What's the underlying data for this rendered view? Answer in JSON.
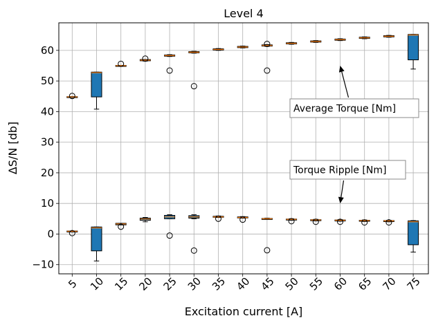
{
  "chart_data": {
    "type": "box",
    "title": "Level 4",
    "xlabel": "Excitation current [A]",
    "ylabel": "ΔS/N [db]",
    "categories": [
      "5",
      "10",
      "15",
      "20",
      "25",
      "30",
      "35",
      "40",
      "45",
      "50",
      "55",
      "60",
      "65",
      "70",
      "75"
    ],
    "ylim": [
      -13,
      69
    ],
    "yticks": [
      -10,
      0,
      10,
      20,
      30,
      40,
      50,
      60
    ],
    "ytick_labels": [
      "−10",
      "0",
      "10",
      "20",
      "30",
      "40",
      "50",
      "60"
    ],
    "grid": true,
    "box_color": "#1f77b4",
    "median_color": "#ff7f0e",
    "series": [
      {
        "name": "Average Torque [Nm]",
        "boxes": [
          {
            "q1": 44.7,
            "median": 44.8,
            "q3": 44.9,
            "wl": 44.7,
            "wh": 44.9,
            "fliers": [
              45.1
            ]
          },
          {
            "q1": 44.8,
            "median": 52.7,
            "q3": 52.9,
            "wl": 40.8,
            "wh": 52.9,
            "fliers": []
          },
          {
            "q1": 54.9,
            "median": 55.0,
            "q3": 55.1,
            "wl": 54.9,
            "wh": 55.1,
            "fliers": [
              55.6
            ]
          },
          {
            "q1": 56.6,
            "median": 56.8,
            "q3": 57.0,
            "wl": 56.5,
            "wh": 57.0,
            "fliers": [
              57.3
            ]
          },
          {
            "q1": 58.1,
            "median": 58.3,
            "q3": 58.5,
            "wl": 58.0,
            "wh": 58.6,
            "fliers": [
              53.4
            ]
          },
          {
            "q1": 59.2,
            "median": 59.4,
            "q3": 59.6,
            "wl": 59.1,
            "wh": 59.7,
            "fliers": [
              48.3
            ]
          },
          {
            "q1": 60.1,
            "median": 60.3,
            "q3": 60.5,
            "wl": 60.0,
            "wh": 60.6,
            "fliers": []
          },
          {
            "q1": 60.9,
            "median": 61.1,
            "q3": 61.3,
            "wl": 60.8,
            "wh": 61.4,
            "fliers": []
          },
          {
            "q1": 61.4,
            "median": 61.6,
            "q3": 61.8,
            "wl": 61.3,
            "wh": 61.9,
            "fliers": [
              62.1,
              53.4
            ]
          },
          {
            "q1": 62.1,
            "median": 62.3,
            "q3": 62.5,
            "wl": 62.0,
            "wh": 62.6,
            "fliers": []
          },
          {
            "q1": 62.7,
            "median": 62.9,
            "q3": 63.1,
            "wl": 62.6,
            "wh": 63.2,
            "fliers": []
          },
          {
            "q1": 63.3,
            "median": 63.5,
            "q3": 63.7,
            "wl": 63.2,
            "wh": 63.8,
            "fliers": []
          },
          {
            "q1": 63.9,
            "median": 64.1,
            "q3": 64.3,
            "wl": 63.8,
            "wh": 64.4,
            "fliers": []
          },
          {
            "q1": 64.4,
            "median": 64.6,
            "q3": 64.8,
            "wl": 64.3,
            "wh": 64.9,
            "fliers": []
          },
          {
            "q1": 56.9,
            "median": 65.0,
            "q3": 65.2,
            "wl": 53.9,
            "wh": 65.2,
            "fliers": []
          }
        ]
      },
      {
        "name": "Torque Ripple [Nm]",
        "boxes": [
          {
            "q1": 0.8,
            "median": 0.9,
            "q3": 1.0,
            "wl": 0.8,
            "wh": 1.0,
            "fliers": [
              0.3
            ]
          },
          {
            "q1": -5.5,
            "median": 2.0,
            "q3": 2.3,
            "wl": -8.8,
            "wh": 2.3,
            "fliers": []
          },
          {
            "q1": 3.0,
            "median": 3.3,
            "q3": 3.5,
            "wl": 3.0,
            "wh": 3.5,
            "fliers": [
              2.4
            ]
          },
          {
            "q1": 4.5,
            "median": 4.9,
            "q3": 5.2,
            "wl": 4.0,
            "wh": 5.4,
            "fliers": []
          },
          {
            "q1": 5.0,
            "median": 5.6,
            "q3": 6.1,
            "wl": 5.0,
            "wh": 6.3,
            "fliers": [
              -0.5
            ]
          },
          {
            "q1": 5.2,
            "median": 5.6,
            "q3": 6.0,
            "wl": 5.0,
            "wh": 6.3,
            "fliers": [
              -5.4
            ]
          },
          {
            "q1": 5.5,
            "median": 5.6,
            "q3": 5.8,
            "wl": 5.4,
            "wh": 5.9,
            "fliers": [
              5.0
            ]
          },
          {
            "q1": 5.3,
            "median": 5.4,
            "q3": 5.6,
            "wl": 5.2,
            "wh": 5.7,
            "fliers": [
              4.7
            ]
          },
          {
            "q1": 4.9,
            "median": 5.0,
            "q3": 5.1,
            "wl": 4.8,
            "wh": 5.2,
            "fliers": [
              -5.3
            ]
          },
          {
            "q1": 4.6,
            "median": 4.8,
            "q3": 4.9,
            "wl": 4.5,
            "wh": 5.0,
            "fliers": [
              4.2
            ]
          },
          {
            "q1": 4.4,
            "median": 4.6,
            "q3": 4.7,
            "wl": 4.3,
            "wh": 4.8,
            "fliers": [
              4.0
            ]
          },
          {
            "q1": 4.3,
            "median": 4.5,
            "q3": 4.6,
            "wl": 4.2,
            "wh": 4.7,
            "fliers": [
              4.0
            ]
          },
          {
            "q1": 4.2,
            "median": 4.4,
            "q3": 4.5,
            "wl": 4.1,
            "wh": 4.6,
            "fliers": [
              3.8
            ]
          },
          {
            "q1": 4.1,
            "median": 4.3,
            "q3": 4.4,
            "wl": 4.0,
            "wh": 4.5,
            "fliers": [
              3.8
            ]
          },
          {
            "q1": -3.5,
            "median": 4.0,
            "q3": 4.3,
            "wl": -5.9,
            "wh": 4.4,
            "fliers": []
          }
        ]
      }
    ],
    "annotations": [
      {
        "text": "Average Torque [Nm]",
        "arrow_to": {
          "x": "60",
          "y": 55
        }
      },
      {
        "text": "Torque Ripple [Nm]",
        "arrow_to": {
          "x": "60",
          "y": 10
        }
      }
    ]
  }
}
